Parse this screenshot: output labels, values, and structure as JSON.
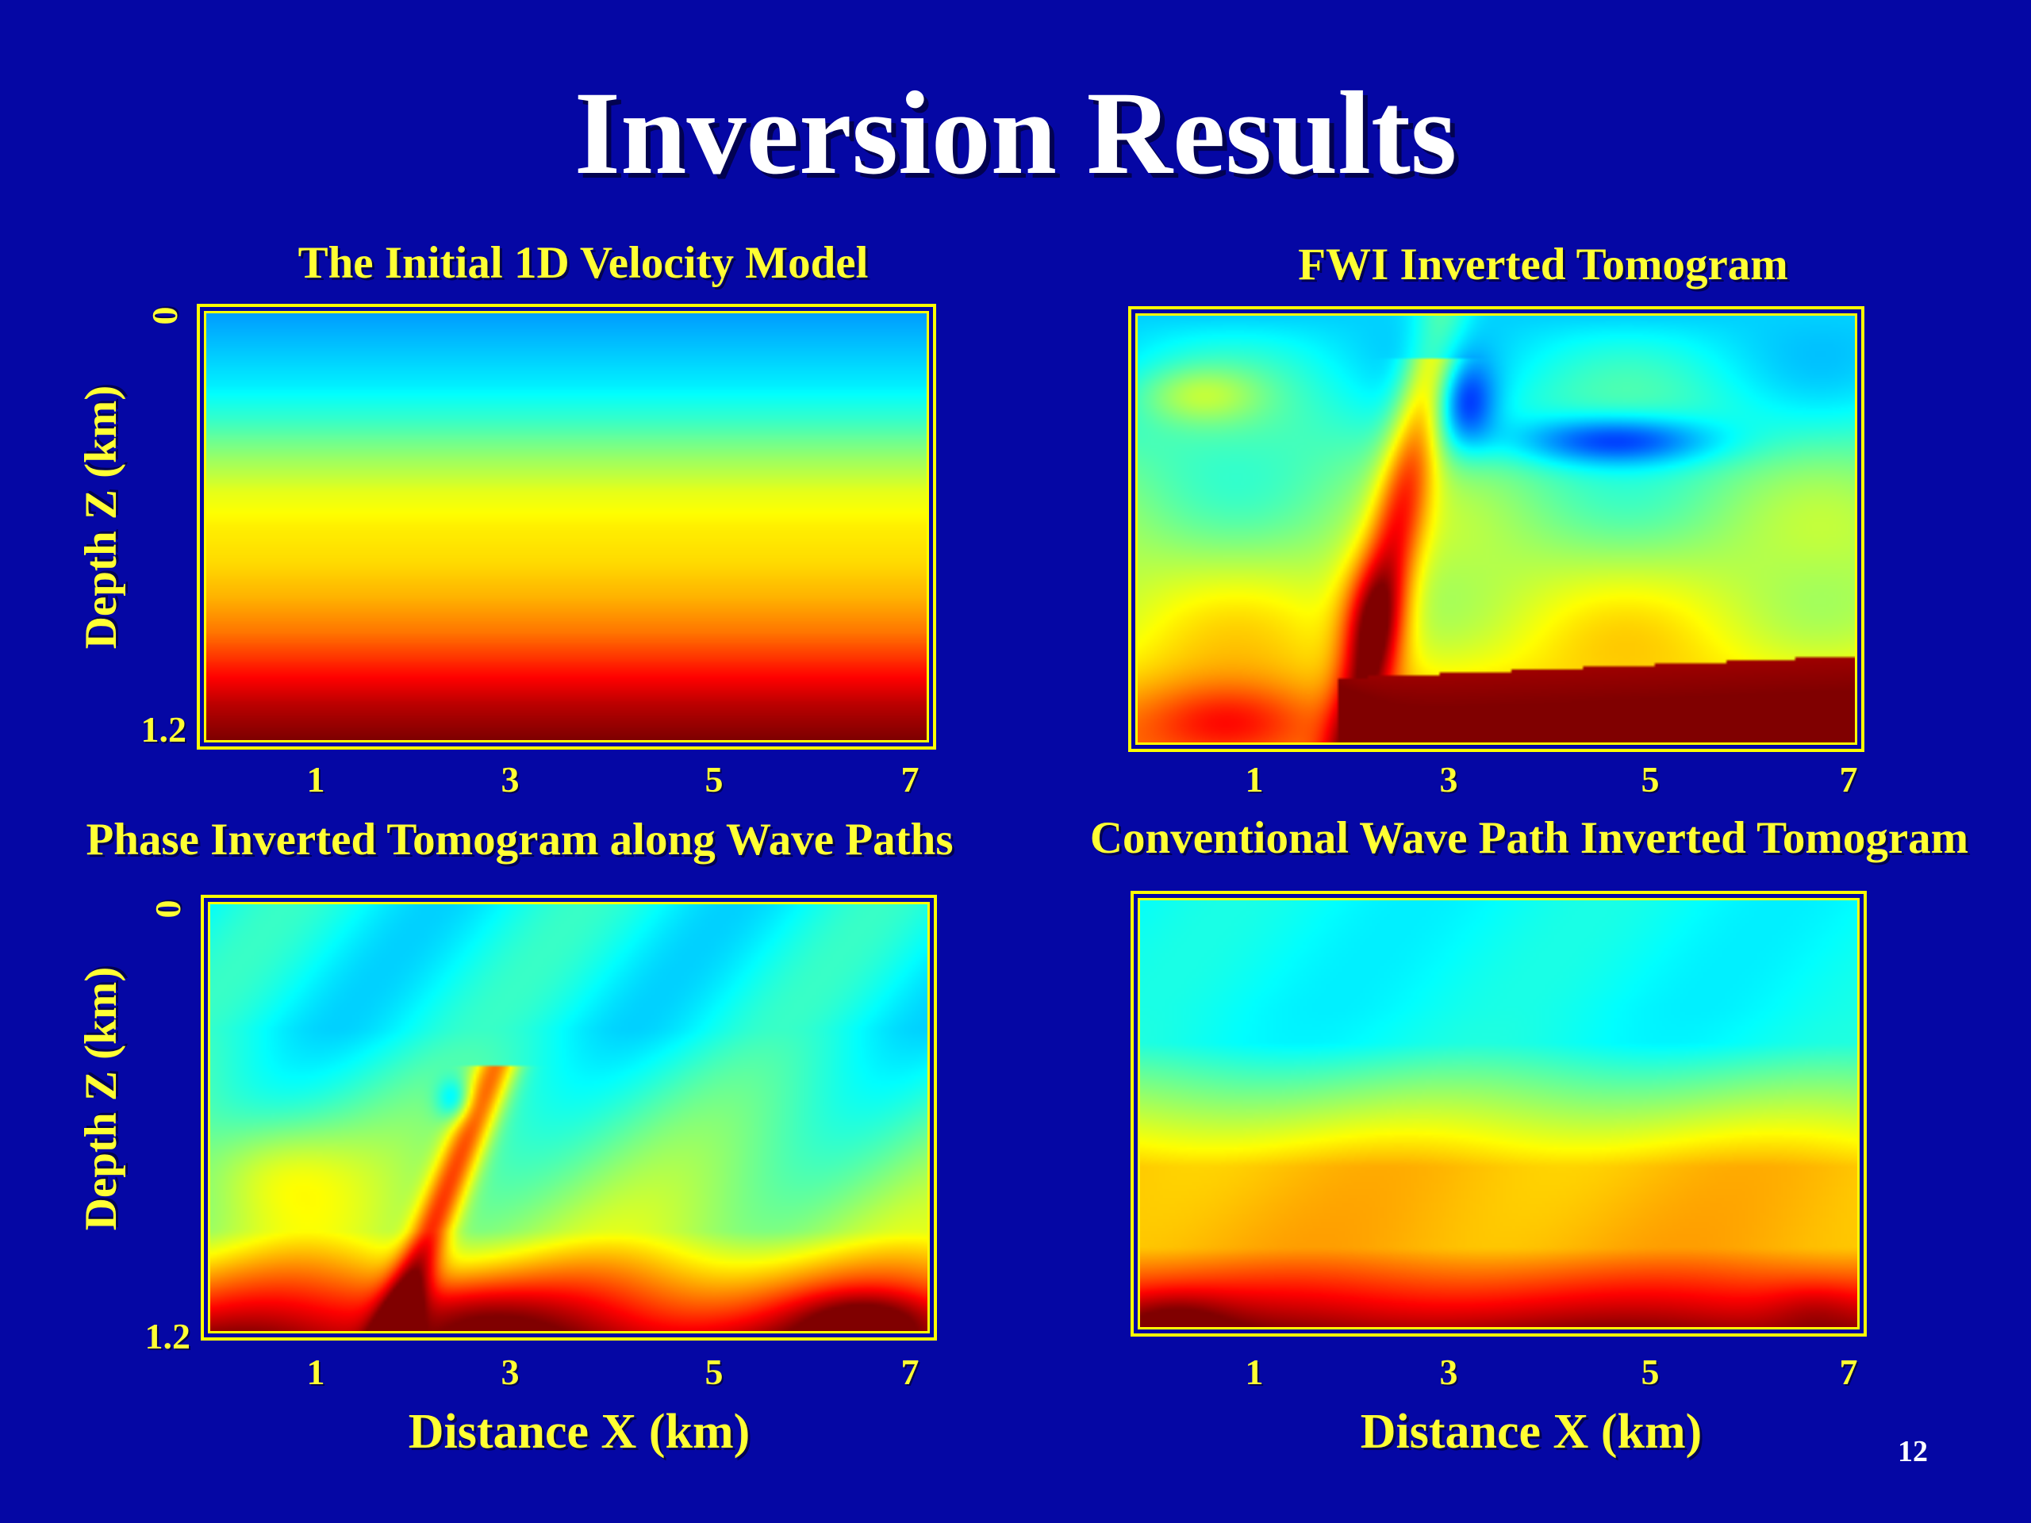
{
  "slide": {
    "title": "Inversion Results",
    "page_number": "12"
  },
  "axes": {
    "y_label": "Depth Z (km)",
    "x_label": "Distance X (km)",
    "x_ticks": [
      "1",
      "3",
      "5",
      "7"
    ],
    "y_ticks": [
      "0",
      "1.2"
    ]
  },
  "colors": {
    "background": "#0507a4",
    "title": "#ffffff",
    "labels": "#ffff33",
    "frame": "#ffff00",
    "colormap": "jet"
  },
  "chart_data": [
    {
      "type": "heatmap",
      "title": "The Initial 1D Velocity Model",
      "xlabel": "Distance X (km)",
      "ylabel": "Depth Z (km)",
      "xlim": [
        0,
        7.2
      ],
      "ylim": [
        0,
        1.2
      ],
      "x_ticks": [
        1,
        3,
        5,
        7
      ],
      "y_ticks": [
        0,
        1.2
      ],
      "colormap": "jet",
      "relative_velocity_by_depth": {
        "depth_km": [
          0,
          0.1,
          0.2,
          0.3,
          0.4,
          0.5,
          0.6,
          0.7,
          0.8,
          0.9,
          1.0,
          1.1,
          1.2
        ],
        "value": [
          0.28,
          0.32,
          0.36,
          0.43,
          0.52,
          0.6,
          0.64,
          0.66,
          0.7,
          0.76,
          0.85,
          0.94,
          1.0
        ]
      }
    },
    {
      "type": "heatmap",
      "title": "FWI Inverted Tomogram",
      "xlabel": "Distance X (km)",
      "ylabel": "Depth Z (km)",
      "xlim": [
        0,
        7.2
      ],
      "ylim": [
        0,
        1.2
      ],
      "x_ticks": [
        1,
        3,
        5,
        7
      ],
      "y_ticks": [
        0,
        1.2
      ],
      "colormap": "jet",
      "features": [
        {
          "kind": "dipping high-velocity body",
          "x_km": [
            2.0,
            2.9
          ],
          "depth_km": [
            0.2,
            1.2
          ]
        },
        {
          "kind": "low-velocity zone",
          "x_km": [
            4.0,
            6.5
          ],
          "depth_km": [
            0.3,
            0.4
          ]
        },
        {
          "kind": "high-velocity basement",
          "x_km": [
            2.2,
            7.0
          ],
          "depth_km": [
            1.0,
            1.2
          ]
        }
      ]
    },
    {
      "type": "heatmap",
      "title": "Phase Inverted Tomogram along Wave Paths",
      "xlabel": "Distance X (km)",
      "ylabel": "Depth Z (km)",
      "xlim": [
        0,
        7.2
      ],
      "ylim": [
        0,
        1.2
      ],
      "x_ticks": [
        1,
        3,
        5,
        7
      ],
      "y_ticks": [
        0,
        1.2
      ],
      "colormap": "jet",
      "features": [
        {
          "kind": "dipping high-velocity body",
          "x_km": [
            1.6,
            2.9
          ],
          "depth_km": [
            0.5,
            1.2
          ]
        },
        {
          "kind": "small low-velocity anomaly",
          "x_km": [
            2.3,
            2.6
          ],
          "depth_km": [
            0.5,
            0.6
          ]
        },
        {
          "kind": "high-velocity basement",
          "x_km": [
            0,
            7.0
          ],
          "depth_km": [
            1.0,
            1.2
          ]
        }
      ]
    },
    {
      "type": "heatmap",
      "title": "Conventional Wave Path Inverted Tomogram",
      "xlabel": "Distance X (km)",
      "ylabel": "Depth Z (km)",
      "xlim": [
        0,
        7.2
      ],
      "ylim": [
        0,
        1.2
      ],
      "x_ticks": [
        1,
        3,
        5,
        7
      ],
      "y_ticks": [
        0,
        1.2
      ],
      "colormap": "jet",
      "features": [
        {
          "kind": "smooth layered gradient",
          "x_km": [
            0,
            7.2
          ],
          "depth_km": [
            0,
            1.2
          ]
        }
      ]
    }
  ]
}
